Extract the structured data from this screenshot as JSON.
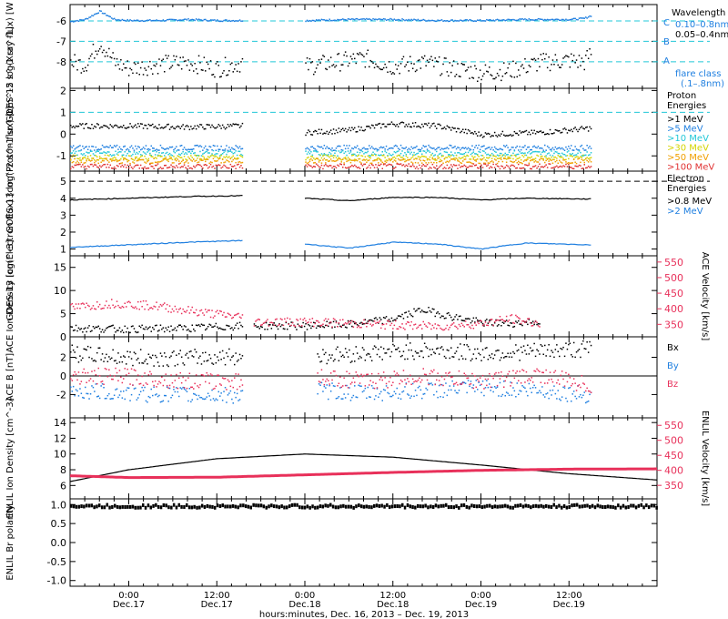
{
  "x_axis": {
    "tick_times": [
      "0:00",
      "12:00",
      "0:00",
      "12:00",
      "0:00",
      "12:00"
    ],
    "tick_dates": [
      "Dec.17",
      "Dec.17",
      "Dec.18",
      "Dec.18",
      "Dec.19",
      "Dec.19"
    ],
    "xlabel": "hours:minutes, Dec. 16, 2013 – Dec. 19, 2013"
  },
  "legend": {
    "wavelength_title": "Wavelength",
    "wavelength_items": [
      {
        "label": "0.10–0.8nm",
        "color": "#1f7fe0"
      },
      {
        "label": "0.05–0.4nm",
        "color": "#000000"
      }
    ],
    "flare_letters": [
      "C",
      "B",
      "A"
    ],
    "flare_class_label": "flare class",
    "flare_class_range": "(.1–.8nm)",
    "proton_title": "Proton Energies",
    "proton_items": [
      {
        "label": ">1 MeV",
        "color": "#000000"
      },
      {
        "label": ">5 MeV",
        "color": "#1f7fe0"
      },
      {
        "label": ">10 MeV",
        "color": "#22c8d8"
      },
      {
        "label": ">30 MeV",
        "color": "#d4d400"
      },
      {
        "label": ">50 MeV",
        "color": "#f0a000"
      },
      {
        "label": ">100 MeV",
        "color": "#e03030"
      }
    ],
    "electron_title": "Electron Energies",
    "electron_items": [
      {
        "label": ">0.8 MeV",
        "color": "#000000"
      },
      {
        "label": ">2 MeV",
        "color": "#1f7fe0"
      }
    ],
    "b_items": [
      {
        "label": "Bx",
        "color": "#000000"
      },
      {
        "label": "By",
        "color": "#1f7fe0"
      },
      {
        "label": "Bz",
        "color": "#e8305a"
      }
    ]
  },
  "colors": {
    "blue": "#1f7fe0",
    "pink": "#e8305a",
    "black": "#000000",
    "cyan": "#22c8d8"
  },
  "chart_data": [
    {
      "type": "scatter",
      "ylabel": "GOES-15 log(Xray flux) [W m^-2]",
      "yticks": [
        -6,
        -7,
        -8
      ],
      "ylim": [
        -9.3,
        -5.2
      ],
      "gap_hours": [
        15.5,
        24.0
      ],
      "ref_lines": [
        -6,
        -7,
        -8
      ],
      "series": [
        {
          "name": "0.10–0.8nm",
          "x": [
            -8,
            -6,
            -4,
            -2,
            0,
            4,
            8,
            12,
            15.5,
            24,
            30,
            36,
            42,
            48,
            54,
            60,
            62,
            63
          ],
          "y": [
            -6.0,
            -5.9,
            -5.5,
            -5.9,
            -5.95,
            -5.95,
            -5.9,
            -5.95,
            -5.95,
            -5.95,
            -5.9,
            -5.9,
            -5.95,
            -5.95,
            -5.9,
            -5.9,
            -5.85,
            -5.7
          ]
        },
        {
          "name": "0.05–0.4nm",
          "x": [
            -8,
            -6,
            -4,
            -2,
            0,
            4,
            8,
            12,
            15.5,
            24,
            28,
            32,
            36,
            40,
            44,
            48,
            52,
            56,
            60,
            62,
            63
          ],
          "y": [
            -8.0,
            -8.1,
            -7.0,
            -8.0,
            -8.3,
            -8.1,
            -8.0,
            -8.3,
            -8.0,
            -8.2,
            -8.0,
            -7.8,
            -8.2,
            -8.0,
            -8.3,
            -8.5,
            -8.4,
            -8.0,
            -7.9,
            -8.0,
            -7.5
          ]
        }
      ]
    },
    {
      "type": "scatter",
      "ylabel": "GOES-13 log(Proton flux) [cm^-2 s^-1 sr^-1]",
      "yticks": [
        2,
        1,
        0,
        -1
      ],
      "ylim": [
        -1.7,
        2.1
      ],
      "gap_hours": [
        15.5,
        24.0
      ],
      "ref_lines": [
        1
      ],
      "series": [
        {
          "name": ">1 MeV",
          "x": [
            -8,
            0,
            8,
            15.5,
            24,
            30,
            36,
            42,
            48,
            56,
            63
          ],
          "y": [
            0.4,
            0.4,
            0.35,
            0.4,
            0.1,
            0.2,
            0.5,
            0.4,
            0.0,
            0.1,
            0.3
          ]
        },
        {
          "name": ">5 MeV",
          "x": [
            -8,
            15.5,
            24,
            63
          ],
          "y": [
            -0.6,
            -0.6,
            -0.6,
            -0.6
          ]
        },
        {
          "name": ">10 MeV",
          "x": [
            -8,
            15.5,
            24,
            63
          ],
          "y": [
            -0.85,
            -0.85,
            -0.85,
            -0.85
          ]
        },
        {
          "name": ">30 MeV",
          "x": [
            -8,
            15.5,
            24,
            63
          ],
          "y": [
            -1.05,
            -1.05,
            -1.05,
            -1.05
          ]
        },
        {
          "name": ">50 MeV",
          "x": [
            -8,
            15.5,
            24,
            63
          ],
          "y": [
            -1.2,
            -1.2,
            -1.2,
            -1.2
          ]
        },
        {
          "name": ">100 MeV",
          "x": [
            -8,
            15.5,
            24,
            63
          ],
          "y": [
            -1.45,
            -1.45,
            -1.45,
            -1.45
          ]
        }
      ]
    },
    {
      "type": "line",
      "ylabel": "GOES-13 log(Electron flux) [cm^-2 s^-1 sr^-1]",
      "yticks": [
        5,
        4,
        3,
        2,
        1
      ],
      "ylim": [
        0.6,
        5.6
      ],
      "gap_hours": [
        15.5,
        24.0
      ],
      "ref_lines": [
        5
      ],
      "series": [
        {
          "name": ">0.8 MeV",
          "x": [
            -8,
            0,
            8,
            15.5,
            24,
            30,
            36,
            42,
            48,
            54,
            63
          ],
          "y": [
            3.9,
            4.0,
            4.1,
            4.15,
            4.0,
            3.85,
            4.05,
            4.05,
            3.9,
            4.0,
            3.95
          ]
        },
        {
          "name": ">2 MeV",
          "x": [
            -8,
            0,
            8,
            15.5,
            24,
            30,
            36,
            42,
            48,
            54,
            63
          ],
          "y": [
            1.1,
            1.25,
            1.4,
            1.5,
            1.3,
            1.05,
            1.4,
            1.3,
            1.0,
            1.35,
            1.25
          ]
        }
      ]
    },
    {
      "type": "scatter",
      "ylabel": "ACE Ion Density [cm^-3]",
      "ylabel_right": "ACE Velocity [km/s]",
      "yticks": [
        15,
        10,
        5,
        0
      ],
      "ylim": [
        0,
        17.5
      ],
      "yticks_right": [
        550,
        500,
        450,
        400,
        350
      ],
      "ylim_right": [
        310,
        570
      ],
      "gap_hours": [
        15.5,
        17.0
      ],
      "series": [
        {
          "name": "Ion Density",
          "x": [
            -8,
            0,
            8,
            15.5,
            17,
            24,
            30,
            36,
            40,
            44,
            48,
            52,
            56
          ],
          "y": [
            2,
            1.8,
            2,
            2.5,
            2.5,
            2.5,
            2.8,
            4,
            6,
            4.5,
            3.2,
            3,
            3.5
          ]
        },
        {
          "name": "Velocity",
          "x": [
            -8,
            -2,
            4,
            10,
            15.5,
            17,
            24,
            30,
            36,
            42,
            48,
            52,
            56
          ],
          "y": [
            405,
            420,
            410,
            390,
            375,
            360,
            360,
            355,
            350,
            345,
            355,
            370,
            355
          ]
        }
      ]
    },
    {
      "type": "scatter",
      "ylabel": "ACE B [nT]",
      "yticks": [
        2,
        0,
        -2
      ],
      "ylim": [
        -4.5,
        4.2
      ],
      "gap_hours": [
        15.5,
        25.5
      ],
      "zero_line": true,
      "series": [
        {
          "name": "Bx",
          "x": [
            -8,
            0,
            8,
            15.5,
            25.5,
            32,
            40,
            48,
            56,
            63
          ],
          "y": [
            2.5,
            2,
            2,
            2.2,
            2.2,
            2.5,
            2.8,
            2.5,
            2.7,
            3.0
          ]
        },
        {
          "name": "By",
          "x": [
            -8,
            0,
            8,
            15.5,
            25.5,
            32,
            40,
            48,
            56,
            63
          ],
          "y": [
            -1.5,
            -1.8,
            -2,
            -2,
            -1.5,
            -1.8,
            -1.5,
            -1.2,
            -1.5,
            -2
          ]
        },
        {
          "name": "Bz",
          "x": [
            -8,
            0,
            8,
            15.5,
            25.5,
            32,
            40,
            48,
            56,
            63
          ],
          "y": [
            0,
            0,
            -0.5,
            -0.5,
            0,
            -0.5,
            0,
            -0.5,
            0.2,
            -1
          ]
        }
      ]
    },
    {
      "type": "line",
      "ylabel": "ENLIL Ion Density [cm^-3]",
      "ylabel_right": "ENLIL Velocity [km/s]",
      "yticks": [
        14,
        12,
        10,
        8,
        6
      ],
      "ylim": [
        4.3,
        14.6
      ],
      "yticks_right": [
        550,
        500,
        450,
        400,
        350
      ],
      "ylim_right": [
        305,
        575
      ],
      "series": [
        {
          "name": "Ion Density",
          "x": [
            -8,
            0,
            12,
            24,
            36,
            48,
            60,
            72
          ],
          "y": [
            6.5,
            8.0,
            9.4,
            10.0,
            9.6,
            8.6,
            7.5,
            6.7
          ]
        },
        {
          "name": "Velocity",
          "x": [
            -8,
            0,
            12,
            24,
            36,
            48,
            60,
            72
          ],
          "y": [
            382,
            376,
            377,
            385,
            393,
            400,
            404,
            405
          ]
        }
      ]
    },
    {
      "type": "scatter",
      "ylabel": "ENLIL Br polarity",
      "yticks": [
        1.0,
        0.5,
        0.0,
        -0.5,
        -1.0
      ],
      "ylim": [
        -1.15,
        1.15
      ],
      "series": [
        {
          "name": "Br polarity",
          "x": [
            -8,
            72
          ],
          "y": [
            1.0,
            1.0
          ]
        }
      ]
    }
  ]
}
